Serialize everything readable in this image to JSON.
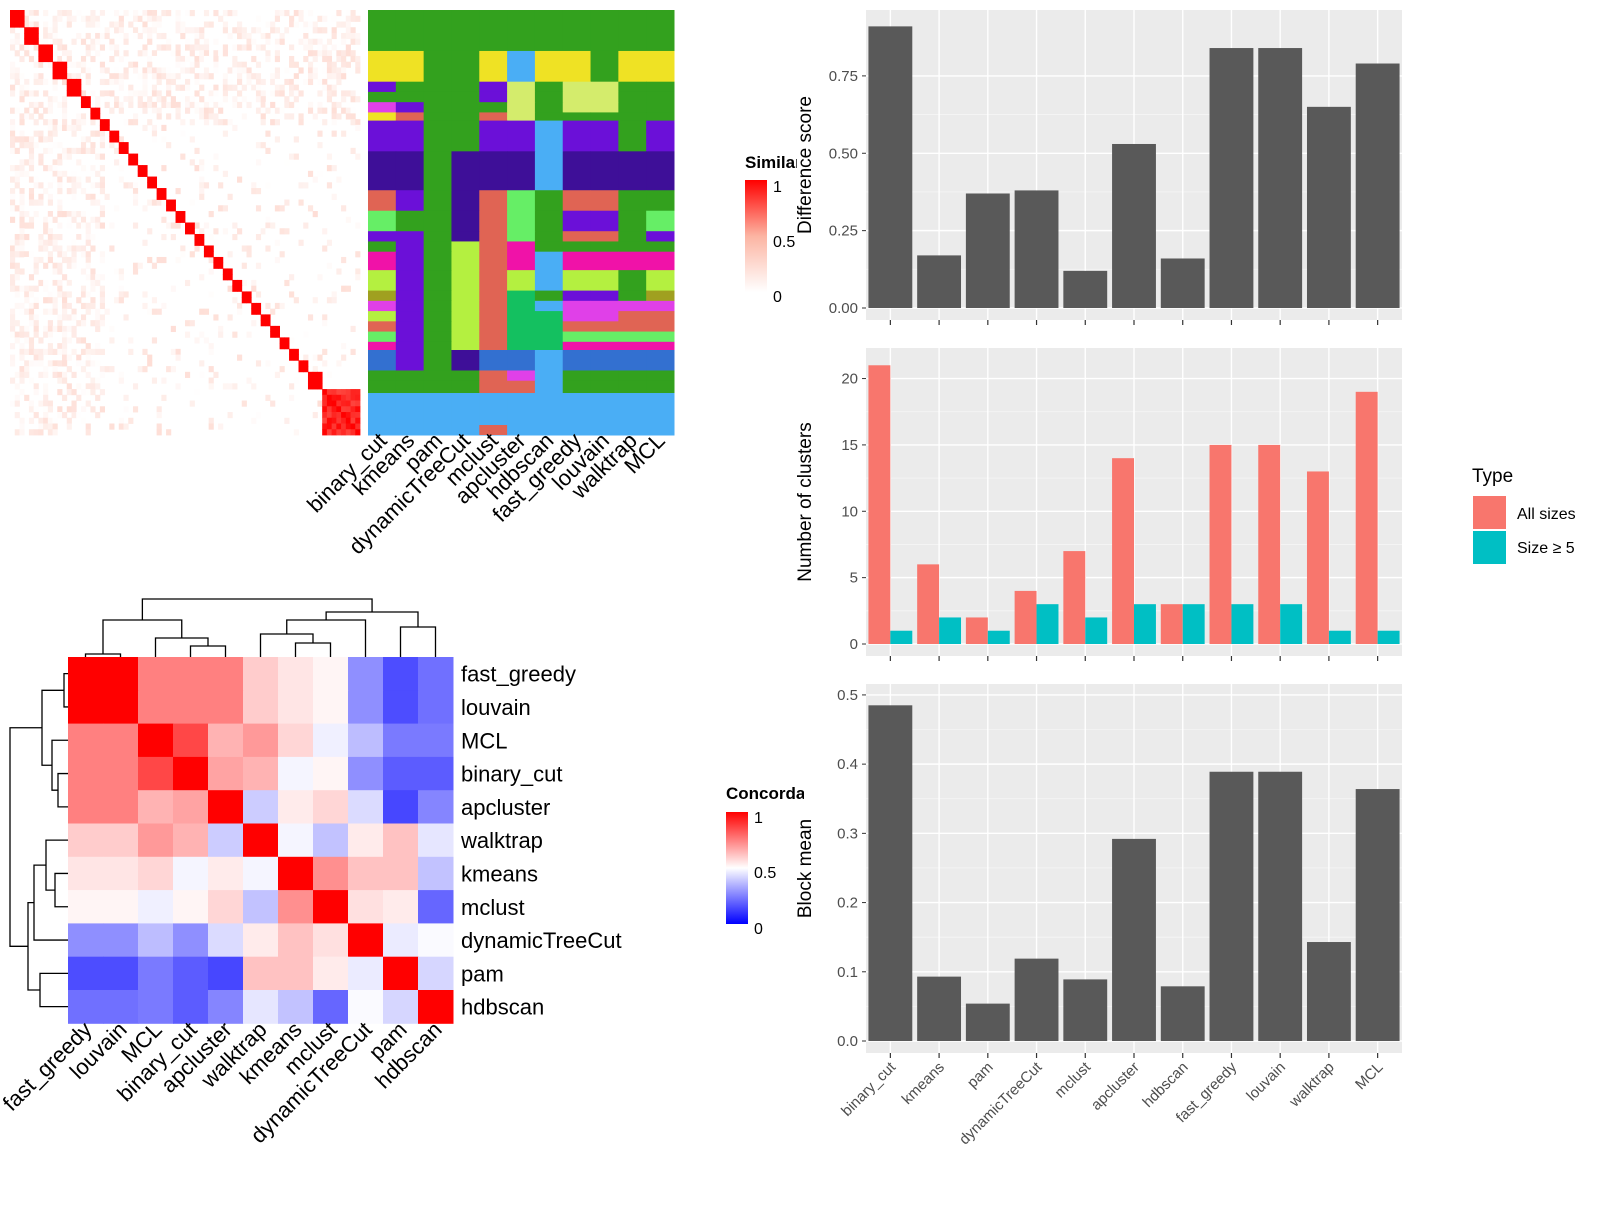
{
  "methods": [
    "binary_cut",
    "kmeans",
    "pam",
    "dynamicTreeCut",
    "mclust",
    "apcluster",
    "hdbscan",
    "fast_greedy",
    "louvain",
    "walktrap",
    "MCL"
  ],
  "concordance_order": [
    "fast_greedy",
    "louvain",
    "MCL",
    "binary_cut",
    "apcluster",
    "walktrap",
    "kmeans",
    "mclust",
    "dynamicTreeCut",
    "pam",
    "hdbscan"
  ],
  "similarity_legend": {
    "title": "Similarity",
    "ticks": [
      "1",
      "0.5",
      "0"
    ]
  },
  "concordance_legend": {
    "title": "Concordance",
    "ticks": [
      "1",
      "0.5",
      "0"
    ]
  },
  "type_legend": {
    "title": "Type",
    "items": [
      {
        "label": "All sizes",
        "color": "#F8766D"
      },
      {
        "label": "Size ≥ 5",
        "color": "#00BFC4"
      }
    ]
  },
  "colors": {
    "bar": "#595959",
    "panel": "#ebebeb",
    "grid": "#ffffff",
    "heat_high": "#ff0000",
    "heat_low": "#0000ff"
  },
  "chart_data": [
    {
      "type": "heatmap",
      "name": "similarity_matrix",
      "diagonal_blocks": [
        3,
        3,
        3,
        3,
        3,
        2,
        2,
        2,
        2,
        2,
        2,
        2,
        2,
        2,
        2,
        2,
        2,
        2,
        2,
        2,
        2,
        2,
        2,
        2,
        2,
        2,
        2,
        2,
        2,
        3,
        8
      ],
      "color_scale": [
        [
          0,
          "#ffffff"
        ],
        [
          0.5,
          "#fcb4a2"
        ],
        [
          1,
          "#ff0000"
        ]
      ]
    },
    {
      "type": "table",
      "name": "cluster_assignment_matrix",
      "columns": [
        "binary_cut",
        "kmeans",
        "pam",
        "dynamicTreeCut",
        "mclust",
        "apcluster",
        "hdbscan",
        "fast_greedy",
        "louvain",
        "walktrap",
        "MCL"
      ]
    },
    {
      "type": "heatmap",
      "name": "concordance_matrix",
      "labels": [
        "fast_greedy",
        "louvain",
        "MCL",
        "binary_cut",
        "apcluster",
        "walktrap",
        "kmeans",
        "mclust",
        "dynamicTreeCut",
        "pam",
        "hdbscan"
      ],
      "values": [
        [
          1.0,
          1.0,
          0.75,
          0.75,
          0.75,
          0.6,
          0.55,
          0.52,
          0.28,
          0.15,
          0.22
        ],
        [
          1.0,
          1.0,
          0.75,
          0.75,
          0.75,
          0.6,
          0.55,
          0.52,
          0.28,
          0.15,
          0.22
        ],
        [
          0.75,
          0.75,
          1.0,
          0.86,
          0.65,
          0.7,
          0.58,
          0.47,
          0.37,
          0.24,
          0.24
        ],
        [
          0.75,
          0.75,
          0.86,
          1.0,
          0.68,
          0.65,
          0.48,
          0.52,
          0.28,
          0.18,
          0.18
        ],
        [
          0.75,
          0.75,
          0.65,
          0.68,
          1.0,
          0.4,
          0.54,
          0.58,
          0.43,
          0.14,
          0.26
        ],
        [
          0.6,
          0.6,
          0.7,
          0.65,
          0.4,
          1.0,
          0.48,
          0.38,
          0.54,
          0.62,
          0.45
        ],
        [
          0.55,
          0.55,
          0.58,
          0.48,
          0.54,
          0.48,
          1.0,
          0.72,
          0.62,
          0.62,
          0.38
        ],
        [
          0.52,
          0.52,
          0.47,
          0.52,
          0.58,
          0.38,
          0.72,
          1.0,
          0.56,
          0.54,
          0.2
        ],
        [
          0.28,
          0.28,
          0.37,
          0.28,
          0.43,
          0.54,
          0.62,
          0.56,
          1.0,
          0.46,
          0.49
        ],
        [
          0.15,
          0.15,
          0.24,
          0.18,
          0.14,
          0.62,
          0.62,
          0.54,
          0.46,
          1.0,
          0.42
        ],
        [
          0.22,
          0.22,
          0.24,
          0.18,
          0.26,
          0.45,
          0.38,
          0.2,
          0.49,
          0.42,
          1.0
        ]
      ],
      "color_scale": [
        [
          0,
          "#0000ff"
        ],
        [
          0.5,
          "#ffffff"
        ],
        [
          1,
          "#ff0000"
        ]
      ]
    },
    {
      "type": "bar",
      "name": "difference_score",
      "categories": [
        "binary_cut",
        "kmeans",
        "pam",
        "dynamicTreeCut",
        "mclust",
        "apcluster",
        "hdbscan",
        "fast_greedy",
        "louvain",
        "walktrap",
        "MCL"
      ],
      "values": [
        0.91,
        0.17,
        0.37,
        0.38,
        0.12,
        0.53,
        0.16,
        0.84,
        0.84,
        0.65,
        0.79
      ],
      "ylabel": "Difference score",
      "yticks": [
        "0.00",
        "0.25",
        "0.50",
        "0.75"
      ],
      "ylim": [
        0,
        0.95
      ]
    },
    {
      "type": "bar",
      "name": "number_of_clusters",
      "categories": [
        "binary_cut",
        "kmeans",
        "pam",
        "dynamicTreeCut",
        "mclust",
        "apcluster",
        "hdbscan",
        "fast_greedy",
        "louvain",
        "walktrap",
        "MCL"
      ],
      "series": [
        {
          "name": "All sizes",
          "values": [
            21,
            6,
            2,
            4,
            7,
            14,
            3,
            15,
            15,
            13,
            19
          ]
        },
        {
          "name": "Size ≥ 5",
          "values": [
            1,
            2,
            1,
            3,
            2,
            3,
            3,
            3,
            3,
            1,
            1
          ]
        }
      ],
      "ylabel": "Number of clusters",
      "yticks": [
        "0",
        "5",
        "10",
        "15",
        "20"
      ],
      "ylim": [
        0,
        22
      ]
    },
    {
      "type": "bar",
      "name": "block_mean",
      "categories": [
        "binary_cut",
        "kmeans",
        "pam",
        "dynamicTreeCut",
        "mclust",
        "apcluster",
        "hdbscan",
        "fast_greedy",
        "louvain",
        "walktrap",
        "MCL"
      ],
      "values": [
        0.485,
        0.093,
        0.054,
        0.119,
        0.089,
        0.292,
        0.079,
        0.389,
        0.389,
        0.143,
        0.364
      ],
      "ylabel": "Block mean",
      "yticks": [
        "0.0",
        "0.1",
        "0.2",
        "0.3",
        "0.4",
        "0.5"
      ],
      "ylim": [
        0,
        0.51
      ]
    }
  ]
}
